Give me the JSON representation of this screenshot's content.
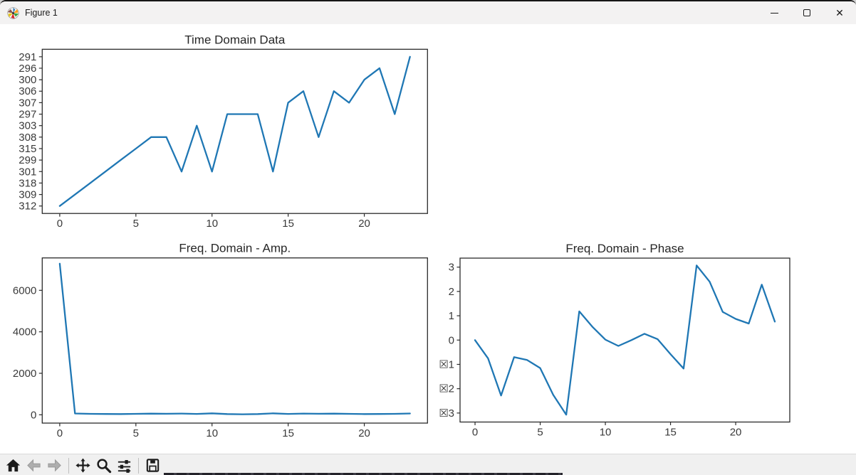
{
  "window": {
    "title": "Figure 1",
    "icon": "matplotlib-logo-icon",
    "controls": {
      "minimize": "minimize",
      "maximize": "maximize",
      "close": "close"
    }
  },
  "toolbar": {
    "buttons": [
      "home",
      "back",
      "forward",
      "pan",
      "zoom-to-rect",
      "configure-subplots",
      "save"
    ]
  },
  "chart_data": [
    {
      "type": "line",
      "title": "Time Domain Data",
      "x": [
        0,
        1,
        2,
        3,
        4,
        5,
        6,
        7,
        8,
        9,
        10,
        11,
        12,
        13,
        14,
        15,
        16,
        17,
        18,
        19,
        20,
        21,
        22,
        23
      ],
      "values": [
        "312",
        "309",
        "318",
        "301",
        "299",
        "315",
        "308",
        "308",
        "301",
        "303",
        "301",
        "297",
        "297",
        "297",
        "301",
        "307",
        "306",
        "308",
        "306",
        "307",
        "300",
        "296",
        "297",
        "291"
      ],
      "y_categories_bottom_to_top": [
        "312",
        "309",
        "318",
        "301",
        "299",
        "315",
        "308",
        "303",
        "297",
        "307",
        "306",
        "300",
        "296",
        "291"
      ],
      "ytick_labels_top_to_bottom": [
        "291",
        "296",
        "300",
        "306",
        "307",
        "297",
        "303",
        "308",
        "315",
        "299",
        "301",
        "318",
        "309",
        "312"
      ],
      "xticks": [
        0,
        5,
        10,
        15,
        20
      ],
      "xlim": [
        -1.15,
        24.15
      ],
      "grid": false,
      "line_color": "#1f77b4"
    },
    {
      "type": "line",
      "title": "Freq. Domain - Amp.",
      "x": [
        0,
        1,
        2,
        3,
        4,
        5,
        6,
        7,
        8,
        9,
        10,
        11,
        12,
        13,
        14,
        15,
        16,
        17,
        18,
        19,
        20,
        21,
        22,
        23
      ],
      "values": [
        7285,
        62,
        45,
        38,
        33,
        45,
        55,
        48,
        60,
        40,
        70,
        35,
        25,
        35,
        70,
        40,
        60,
        48,
        55,
        45,
        33,
        38,
        45,
        62
      ],
      "yticks": [
        0,
        2000,
        4000,
        6000
      ],
      "xticks": [
        0,
        5,
        10,
        15,
        20
      ],
      "xlim": [
        -1.15,
        24.15
      ],
      "ylim": [
        -401,
        7563
      ],
      "grid": false,
      "line_color": "#1f77b4"
    },
    {
      "type": "line",
      "title": "Freq. Domain - Phase",
      "x": [
        0,
        1,
        2,
        3,
        4,
        5,
        6,
        7,
        8,
        9,
        10,
        11,
        12,
        13,
        14,
        15,
        16,
        17,
        18,
        19,
        20,
        21,
        22,
        23
      ],
      "values": [
        0.0,
        -0.75,
        -2.28,
        -0.7,
        -0.82,
        -1.15,
        -2.25,
        -3.07,
        1.18,
        0.55,
        0.02,
        -0.24,
        0.0,
        0.26,
        0.04,
        -0.58,
        -1.17,
        3.07,
        2.4,
        1.16,
        0.87,
        0.68,
        2.28,
        0.76
      ],
      "yticks": [
        {
          "v": 3,
          "label": "3"
        },
        {
          "v": 2,
          "label": "2"
        },
        {
          "v": 1,
          "label": "1"
        },
        {
          "v": 0,
          "label": "0"
        },
        {
          "v": -1,
          "label": "☒1"
        },
        {
          "v": -2,
          "label": "☒2"
        },
        {
          "v": -3,
          "label": "☒3"
        }
      ],
      "xticks": [
        0,
        5,
        10,
        15,
        20
      ],
      "xlim": [
        -1.15,
        24.15
      ],
      "ylim": [
        -3.37,
        3.37
      ],
      "grid": false,
      "line_color": "#1f77b4"
    }
  ]
}
